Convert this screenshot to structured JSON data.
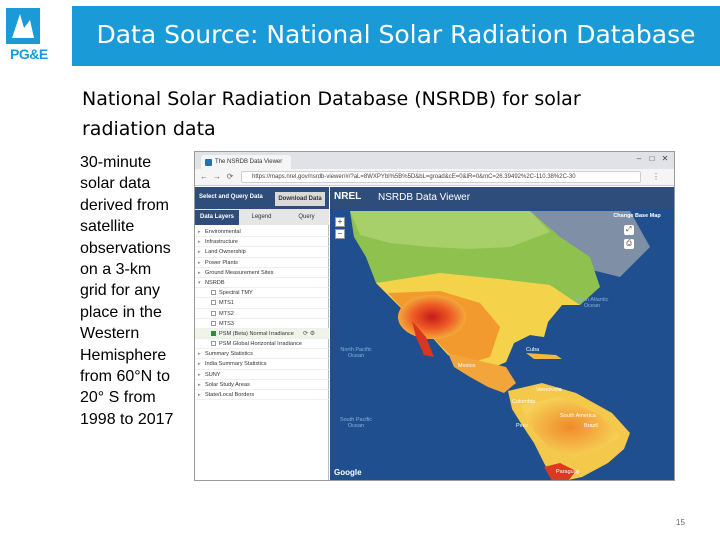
{
  "slide": {
    "title": "Data Source: National Solar Radiation Database",
    "logo_text": "PG&E",
    "subtitle_line1": "National Solar Radiation Database (NSRDB) for solar",
    "subtitle_line2": "radiation data",
    "body_lines": [
      "30-minute",
      "solar data",
      "derived from",
      "satellite",
      "observations",
      "on a 3-km",
      "grid for any",
      "place in the",
      "Western",
      "Hemisphere",
      "from 60°N to",
      "20° S from",
      "1998 to 2017"
    ],
    "page_number": "15",
    "colors": {
      "title_bar": "#1a9ad7",
      "app_header": "#2e4d7b",
      "map_ocean": "#1f4f8e"
    }
  },
  "browser": {
    "tab_title": "The NSRDB Data Viewer",
    "url": "https://maps.nrel.gov/nsrdb-viewer/#/?aL=8WXPYbl%5B%5D&bL=groad&cE=0&lR=0&mC=26.39492%2C-110.38%2C-30",
    "window_controls": [
      "–",
      "□",
      "✕"
    ]
  },
  "app": {
    "side_header_left": "Select and Query Data",
    "side_header_right": "Download Data",
    "tabs": [
      "Data Layers",
      "Legend",
      "Query"
    ],
    "layers": [
      {
        "label": "Environmental",
        "type": "group"
      },
      {
        "label": "Infrastructure",
        "type": "group"
      },
      {
        "label": "Land Ownership",
        "type": "group"
      },
      {
        "label": "Power Plants",
        "type": "group"
      },
      {
        "label": "Ground Measurement Sites",
        "type": "group"
      },
      {
        "label": "NSRDB",
        "type": "open-group"
      },
      {
        "label": "Spectral TMY",
        "type": "sub"
      },
      {
        "label": "MTS1",
        "type": "sub"
      },
      {
        "label": "MTS2",
        "type": "sub"
      },
      {
        "label": "MTS3",
        "type": "sub"
      },
      {
        "label": "PSM (Beta) Normal Irradiance",
        "type": "sub-checked"
      },
      {
        "label": "PSM Global Horizontal Irradiance",
        "type": "sub"
      },
      {
        "label": "Summary Statistics",
        "type": "sub"
      },
      {
        "label": "India Summary Statistics",
        "type": "sub"
      },
      {
        "label": "SUNY",
        "type": "group"
      },
      {
        "label": "Solar Study Areas",
        "type": "group"
      },
      {
        "label": "State/Local Borders",
        "type": "group"
      }
    ],
    "layer_tools": "⟳ ⚙",
    "map_brand": "NREL",
    "map_title": "NSRDB Data Viewer",
    "basemap_button": "Change Base Map",
    "map_labels": {
      "north_pacific": "North Pacific Ocean",
      "north_atlantic": "North Atlantic Ocean",
      "south_pacific": "South Pacific Ocean",
      "south_america": "South America",
      "mexico": "Mexico",
      "venezuela": "Venezuela",
      "colombia": "Colombia",
      "peru": "Peru",
      "brazil": "Brazil",
      "paraguay": "Paraguay",
      "cuba": "Cuba"
    },
    "map_footer": "Google"
  }
}
